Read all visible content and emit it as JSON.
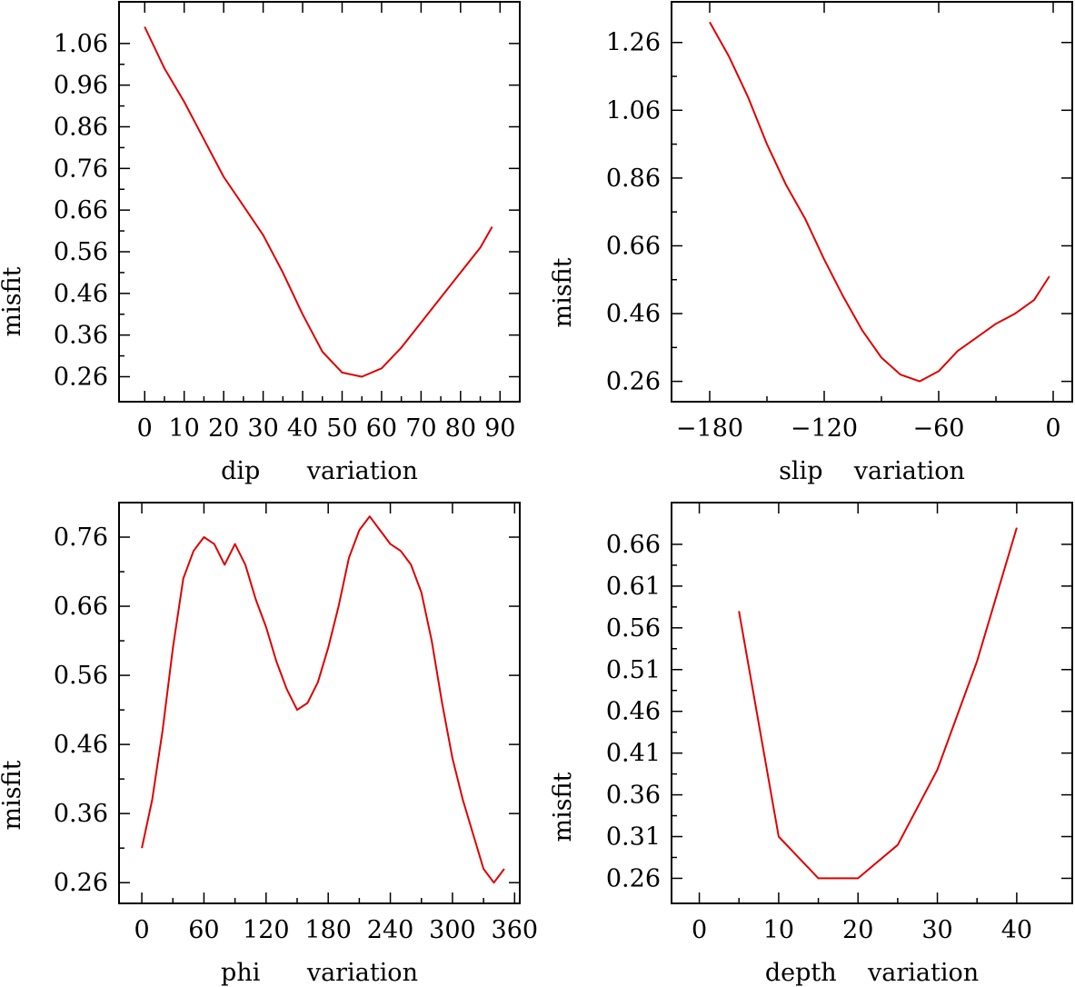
{
  "colors": {
    "series": "#e00000",
    "axis": "#000000",
    "background": "#ffffff"
  },
  "chart_data": [
    {
      "type": "line",
      "title": "",
      "xlabel": "dip      variation",
      "ylabel": "misfit",
      "xlim": [
        -6.5,
        95
      ],
      "ylim": [
        0.2,
        1.16
      ],
      "xticks": [
        0,
        10,
        20,
        30,
        40,
        50,
        60,
        70,
        80,
        90
      ],
      "xtick_labels": [
        "0",
        "10",
        "20",
        "30",
        "40",
        "50",
        "60",
        "70",
        "80",
        "90"
      ],
      "yticks": [
        0.26,
        0.36,
        0.46,
        0.56,
        0.66,
        0.76,
        0.86,
        0.96,
        1.06
      ],
      "ytick_labels": [
        "0.26",
        "0.36",
        "0.46",
        "0.56",
        "0.66",
        "0.76",
        "0.86",
        "0.96",
        "1.06"
      ],
      "series": [
        {
          "name": "dip",
          "x": [
            0,
            5,
            10,
            15,
            20,
            25,
            30,
            35,
            40,
            45,
            50,
            55,
            60,
            65,
            70,
            75,
            80,
            85,
            88
          ],
          "y": [
            1.1,
            1.0,
            0.92,
            0.83,
            0.74,
            0.67,
            0.6,
            0.51,
            0.41,
            0.32,
            0.27,
            0.26,
            0.28,
            0.33,
            0.39,
            0.45,
            0.51,
            0.57,
            0.62
          ]
        }
      ]
    },
    {
      "type": "line",
      "title": "",
      "xlabel": "slip    variation",
      "ylabel": "misfit",
      "xlim": [
        -200,
        10
      ],
      "ylim": [
        0.2,
        1.38
      ],
      "xticks": [
        -180,
        -120,
        -60,
        0
      ],
      "xtick_labels": [
        "−180",
        "−120",
        "−60",
        "0"
      ],
      "yticks": [
        0.26,
        0.46,
        0.66,
        0.86,
        1.06,
        1.26
      ],
      "ytick_labels": [
        "0.26",
        "0.46",
        "0.66",
        "0.86",
        "1.06",
        "1.26"
      ],
      "series": [
        {
          "name": "slip",
          "x": [
            -180,
            -170,
            -160,
            -150,
            -140,
            -130,
            -120,
            -110,
            -100,
            -90,
            -80,
            -70,
            -60,
            -50,
            -40,
            -30,
            -20,
            -10,
            -2
          ],
          "y": [
            1.32,
            1.22,
            1.1,
            0.96,
            0.84,
            0.74,
            0.62,
            0.51,
            0.41,
            0.33,
            0.28,
            0.26,
            0.29,
            0.35,
            0.39,
            0.43,
            0.46,
            0.5,
            0.57
          ]
        }
      ]
    },
    {
      "type": "line",
      "title": "",
      "xlabel": "phi      variation",
      "ylabel": "misfit",
      "xlim": [
        -22,
        365
      ],
      "ylim": [
        0.23,
        0.81
      ],
      "xticks": [
        0,
        60,
        120,
        180,
        240,
        300,
        360
      ],
      "xtick_labels": [
        "0",
        "60",
        "120",
        "180",
        "240",
        "300",
        "360"
      ],
      "yticks": [
        0.26,
        0.36,
        0.46,
        0.56,
        0.66,
        0.76
      ],
      "ytick_labels": [
        "0.26",
        "0.36",
        "0.46",
        "0.56",
        "0.66",
        "0.76"
      ],
      "series": [
        {
          "name": "phi",
          "x": [
            0,
            10,
            20,
            30,
            40,
            50,
            60,
            70,
            80,
            90,
            100,
            110,
            120,
            130,
            140,
            150,
            160,
            170,
            180,
            190,
            200,
            210,
            220,
            230,
            240,
            250,
            260,
            270,
            280,
            290,
            300,
            310,
            320,
            330,
            340,
            350
          ],
          "y": [
            0.31,
            0.38,
            0.48,
            0.6,
            0.7,
            0.74,
            0.76,
            0.75,
            0.72,
            0.75,
            0.72,
            0.67,
            0.63,
            0.58,
            0.54,
            0.51,
            0.52,
            0.55,
            0.6,
            0.66,
            0.73,
            0.77,
            0.79,
            0.77,
            0.75,
            0.74,
            0.72,
            0.68,
            0.61,
            0.52,
            0.44,
            0.38,
            0.33,
            0.28,
            0.26,
            0.28
          ]
        }
      ]
    },
    {
      "type": "line",
      "title": "",
      "xlabel": "depth    variation",
      "ylabel": "misfit",
      "xlim": [
        -3.5,
        47
      ],
      "ylim": [
        0.23,
        0.71
      ],
      "xticks": [
        0,
        10,
        20,
        30,
        40
      ],
      "xtick_labels": [
        "0",
        "10",
        "20",
        "30",
        "40"
      ],
      "yticks": [
        0.26,
        0.31,
        0.36,
        0.41,
        0.46,
        0.51,
        0.56,
        0.61,
        0.66
      ],
      "ytick_labels": [
        "0.26",
        "0.31",
        "0.36",
        "0.41",
        "0.46",
        "0.51",
        "0.56",
        "0.61",
        "0.66"
      ],
      "series": [
        {
          "name": "depth",
          "x": [
            5,
            10,
            15,
            20,
            25,
            30,
            35,
            40
          ],
          "y": [
            0.58,
            0.31,
            0.26,
            0.26,
            0.3,
            0.39,
            0.52,
            0.68
          ]
        }
      ]
    }
  ]
}
